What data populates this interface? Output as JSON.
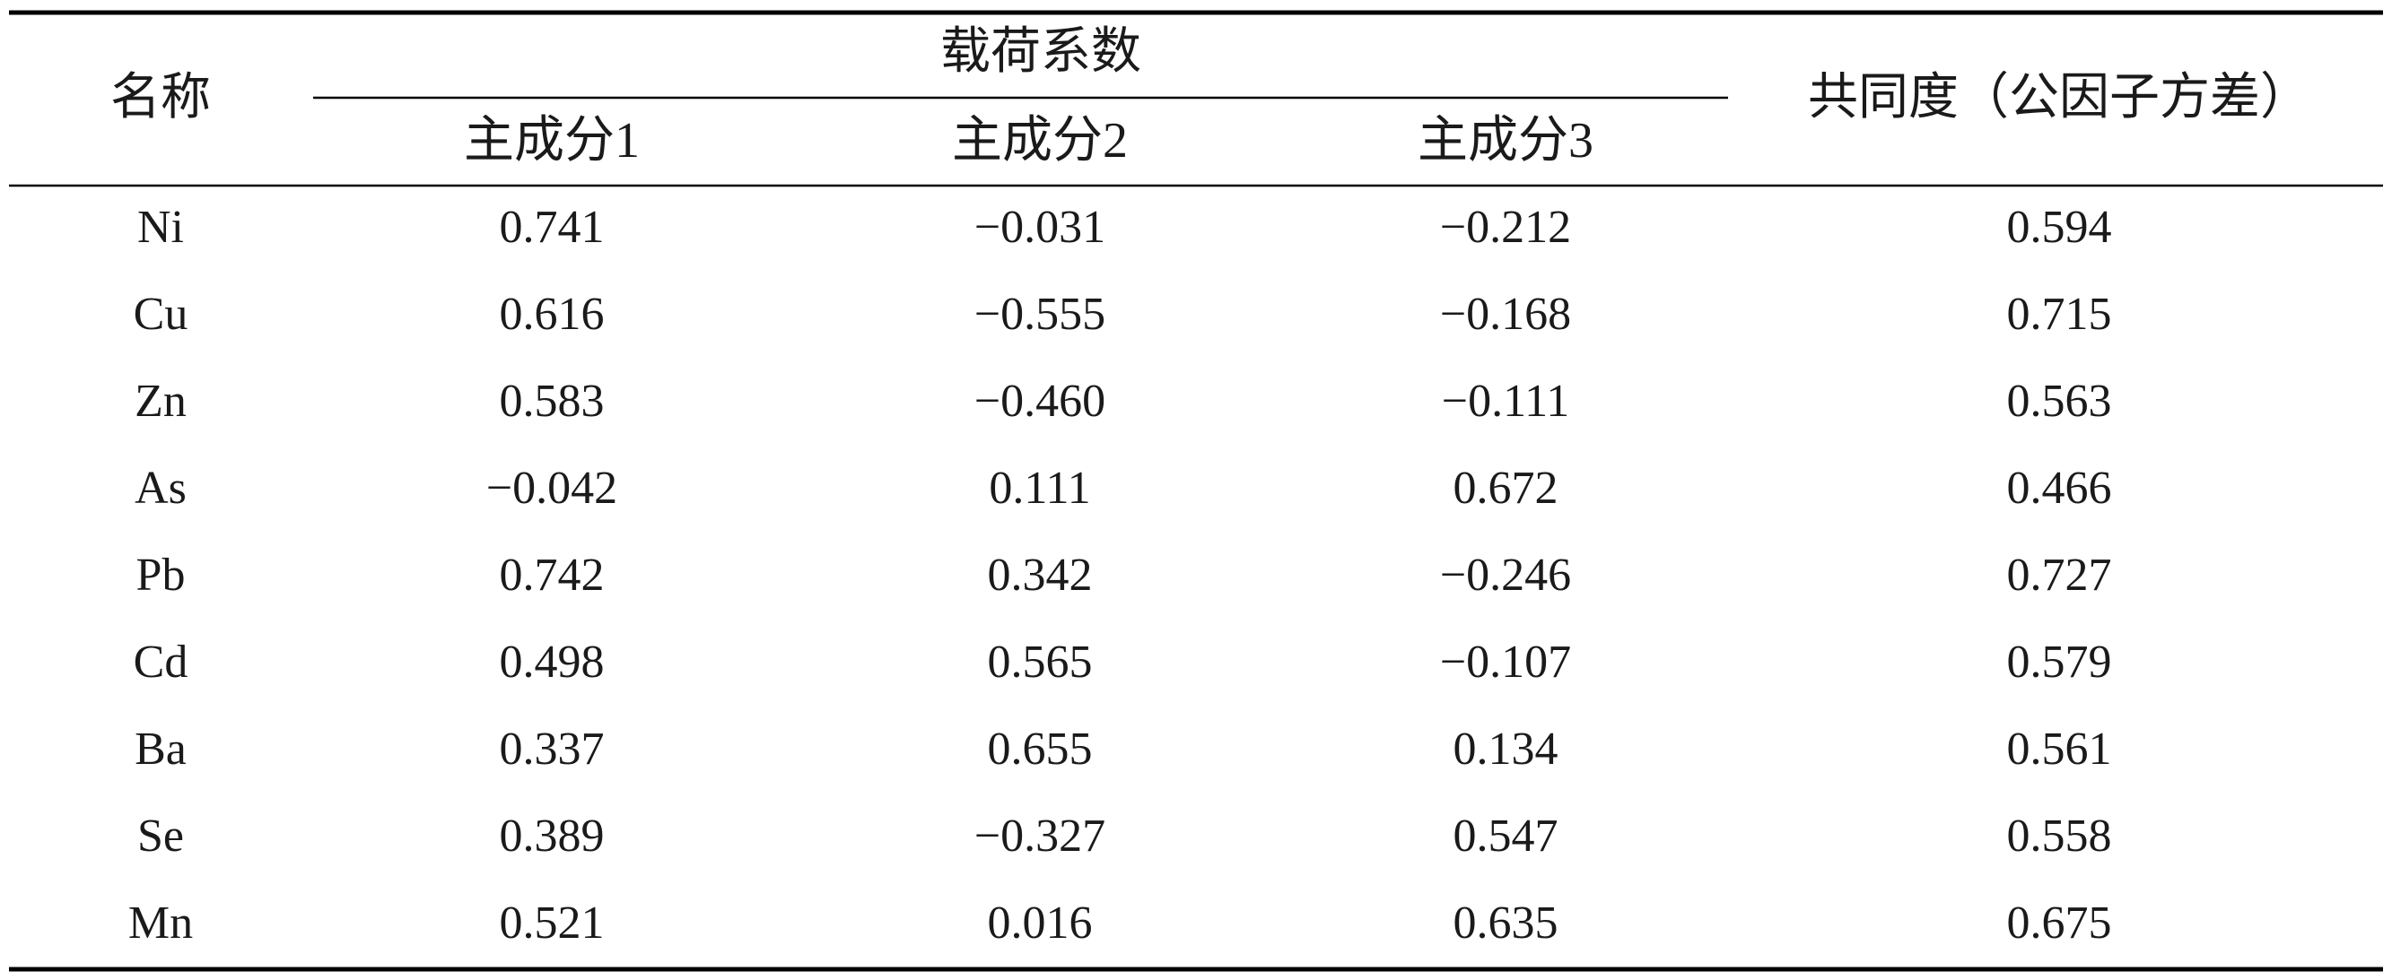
{
  "table": {
    "header": {
      "name": "名称",
      "group": "载荷系数",
      "components": [
        "主成分1",
        "主成分2",
        "主成分3"
      ],
      "communality": "共同度（公因子方差）"
    },
    "rows": [
      [
        "Ni",
        "0.741",
        "−0.031",
        "−0.212",
        "0.594"
      ],
      [
        "Cu",
        "0.616",
        "−0.555",
        "−0.168",
        "0.715"
      ],
      [
        "Zn",
        "0.583",
        "−0.460",
        "−0.111",
        "0.563"
      ],
      [
        "As",
        "−0.042",
        "0.111",
        "0.672",
        "0.466"
      ],
      [
        "Pb",
        "0.742",
        "0.342",
        "−0.246",
        "0.727"
      ],
      [
        "Cd",
        "0.498",
        "0.565",
        "−0.107",
        "0.579"
      ],
      [
        "Ba",
        "0.337",
        "0.655",
        "0.134",
        "0.561"
      ],
      [
        "Se",
        "0.389",
        "−0.327",
        "0.547",
        "0.558"
      ],
      [
        "Mn",
        "0.521",
        "0.016",
        "0.635",
        "0.675"
      ]
    ]
  }
}
